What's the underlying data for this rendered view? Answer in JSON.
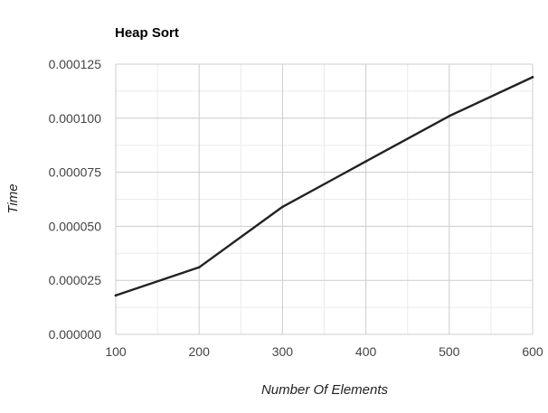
{
  "chart_data": {
    "type": "line",
    "title": "Heap Sort",
    "xlabel": "Number Of Elements",
    "ylabel": "Time",
    "x": [
      100,
      200,
      300,
      400,
      500,
      600
    ],
    "series": [
      {
        "values": [
          1.8e-05,
          3.1e-05,
          5.9e-05,
          8e-05,
          0.000101,
          0.000119
        ]
      }
    ],
    "xlim": [
      100,
      600
    ],
    "ylim": [
      0,
      0.000125
    ],
    "xticks": [
      "100",
      "200",
      "300",
      "400",
      "500",
      "600"
    ],
    "yticks": [
      "0.000000",
      "0.000025",
      "0.000050",
      "0.000075",
      "0.000100",
      "0.000125"
    ],
    "grid": true,
    "legend": "none",
    "colors": {
      "line": "#222222",
      "major_grid": "#cccccc",
      "minor_grid": "#ebebeb",
      "tick_text": "#444444"
    }
  }
}
